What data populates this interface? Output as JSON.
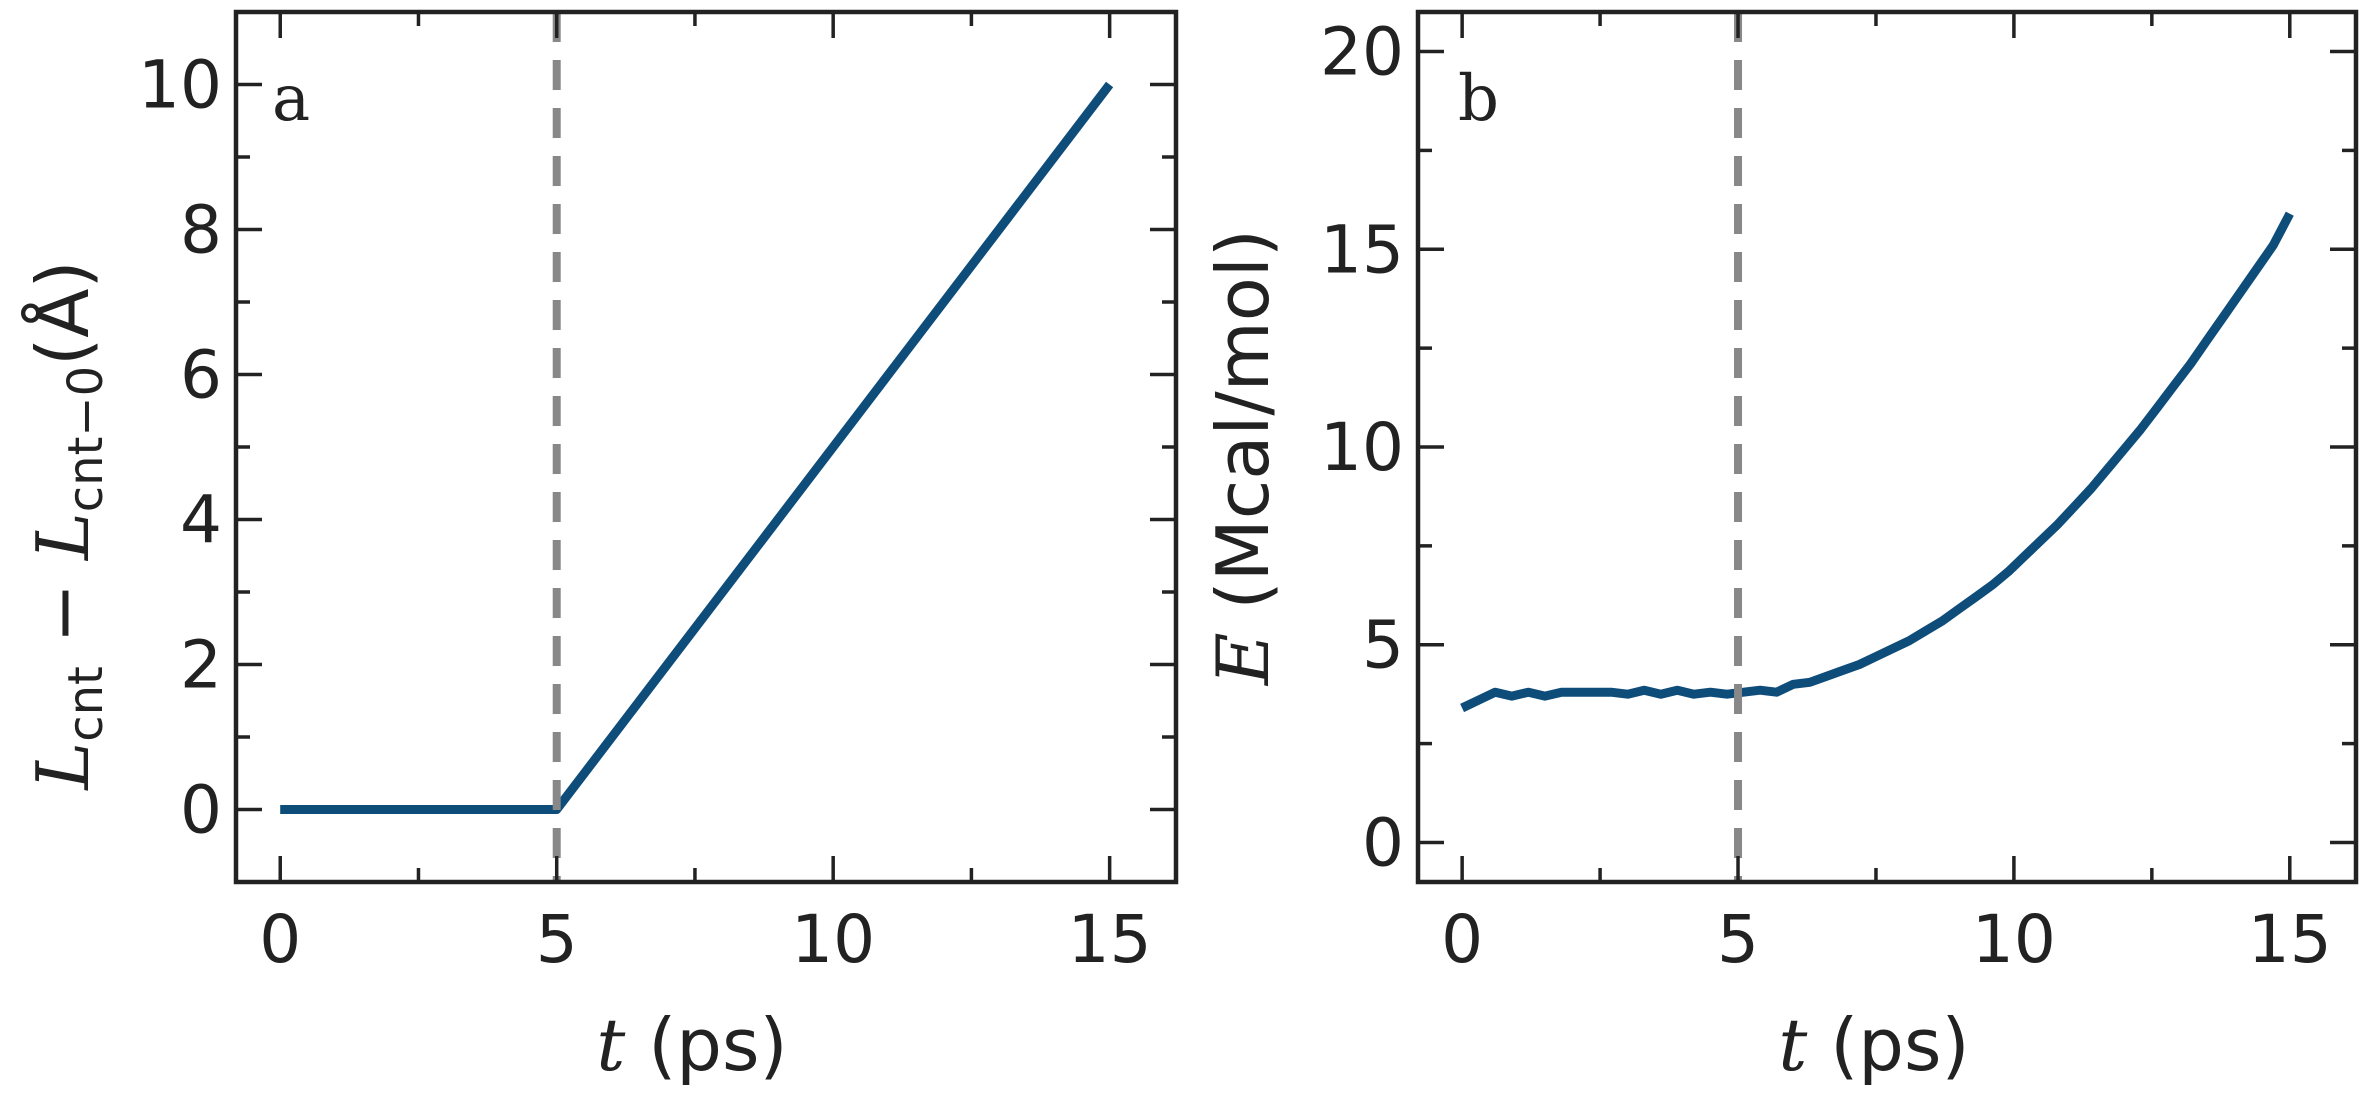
{
  "chart_data": [
    {
      "type": "line",
      "panel_label": "a",
      "xlabel": {
        "var": "t",
        "text": " (ps)"
      },
      "ylabel": {
        "var1": "L",
        "sub1": "cnt",
        "minus": " − ",
        "var2": "L",
        "sub2": "cnt−0",
        "unit": "(Å)"
      },
      "xlim": [
        -0.8,
        16.2
      ],
      "ylim": [
        -1,
        11
      ],
      "xticks": [
        0,
        5,
        10,
        15
      ],
      "xticks_minor": [
        2.5,
        7.5,
        12.5
      ],
      "yticks": [
        0,
        2,
        4,
        6,
        8,
        10
      ],
      "yticks_minor": [
        1,
        3,
        5,
        7,
        9
      ],
      "vline": {
        "x": 5,
        "style": "dashed",
        "color": "#888888"
      },
      "series": [
        {
          "color": "#0e4c7a",
          "x": [
            0,
            5,
            15
          ],
          "y": [
            0,
            0,
            10
          ]
        }
      ]
    },
    {
      "type": "line",
      "panel_label": "b",
      "xlabel": {
        "var": "t",
        "text": " (ps)"
      },
      "ylabel": {
        "var": "E",
        "unit": " (Mcal/mol)"
      },
      "xlim": [
        -0.8,
        16.2
      ],
      "ylim": [
        -1,
        21
      ],
      "xticks": [
        0,
        5,
        10,
        15
      ],
      "xticks_minor": [
        2.5,
        7.5,
        12.5
      ],
      "yticks": [
        0,
        5,
        10,
        15,
        20
      ],
      "yticks_minor": [
        2.5,
        7.5,
        12.5,
        17.5
      ],
      "vline": {
        "x": 5,
        "style": "dashed",
        "color": "#888888"
      },
      "series": [
        {
          "color": "#0e4c7a",
          "x": [
            0,
            0.3,
            0.6,
            0.9,
            1.2,
            1.5,
            1.8,
            2.1,
            2.4,
            2.7,
            3.0,
            3.3,
            3.6,
            3.9,
            4.2,
            4.5,
            4.8,
            5.1,
            5.4,
            5.7,
            6.0,
            6.3,
            6.6,
            6.9,
            7.2,
            7.5,
            7.8,
            8.1,
            8.4,
            8.7,
            9.0,
            9.3,
            9.6,
            9.9,
            10.2,
            10.5,
            10.8,
            11.1,
            11.4,
            11.7,
            12.0,
            12.3,
            12.6,
            12.9,
            13.2,
            13.5,
            13.8,
            14.1,
            14.4,
            14.7,
            15.0
          ],
          "y": [
            3.4,
            3.6,
            3.8,
            3.7,
            3.8,
            3.7,
            3.8,
            3.8,
            3.8,
            3.8,
            3.75,
            3.85,
            3.75,
            3.85,
            3.75,
            3.8,
            3.75,
            3.8,
            3.85,
            3.8,
            4.0,
            4.05,
            4.2,
            4.35,
            4.5,
            4.7,
            4.9,
            5.1,
            5.35,
            5.6,
            5.9,
            6.2,
            6.5,
            6.85,
            7.25,
            7.65,
            8.05,
            8.5,
            8.95,
            9.45,
            9.95,
            10.45,
            11.0,
            11.55,
            12.1,
            12.7,
            13.3,
            13.9,
            14.5,
            15.1,
            15.9
          ]
        }
      ]
    }
  ]
}
